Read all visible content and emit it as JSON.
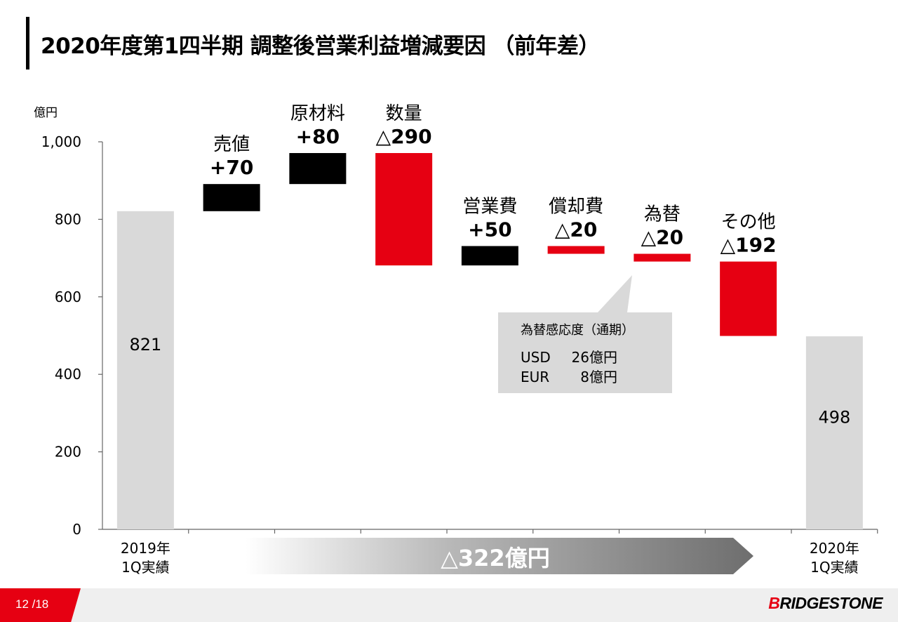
{
  "title": "2020年度第1四半期 調整後営業利益増減要因 （前年差）",
  "page": "12 /18",
  "logo": {
    "first": "B",
    "rest": "RIDGESTONE"
  },
  "colors": {
    "increase": "#000000",
    "decrease": "#e60012",
    "total": "#d9d9d9",
    "accent": "#e60012"
  },
  "chart_data": {
    "type": "waterfall",
    "unit": "億円",
    "ylim": [
      0,
      1000
    ],
    "yticks": [
      "0",
      "200",
      "400",
      "600",
      "800",
      "1,000"
    ],
    "steps": [
      {
        "kind": "total",
        "value": 821,
        "value_label": "821",
        "category": [
          "2019年",
          "1Q実績"
        ]
      },
      {
        "kind": "delta",
        "value": 70,
        "name": "売値",
        "value_label": "+70"
      },
      {
        "kind": "delta",
        "value": 80,
        "name": "原材料",
        "value_label": "+80"
      },
      {
        "kind": "delta",
        "value": -290,
        "name": "数量",
        "value_label": "△290"
      },
      {
        "kind": "delta",
        "value": 50,
        "name": "営業費",
        "value_label": "+50"
      },
      {
        "kind": "delta",
        "value": -20,
        "name": "償却費",
        "value_label": "△20"
      },
      {
        "kind": "delta",
        "value": -20,
        "name": "為替",
        "value_label": "△20"
      },
      {
        "kind": "delta",
        "value": -192,
        "name": "その他",
        "value_label": "△192"
      },
      {
        "kind": "total",
        "value": 498,
        "value_label": "498",
        "category": [
          "2020年",
          "1Q実績"
        ]
      }
    ],
    "total_change_label": "△322億円",
    "callout": {
      "title": "為替感応度（通期）",
      "lines": [
        {
          "currency": "USD",
          "value": "26億円"
        },
        {
          "currency": "EUR",
          "value": "8億円"
        }
      ]
    }
  }
}
